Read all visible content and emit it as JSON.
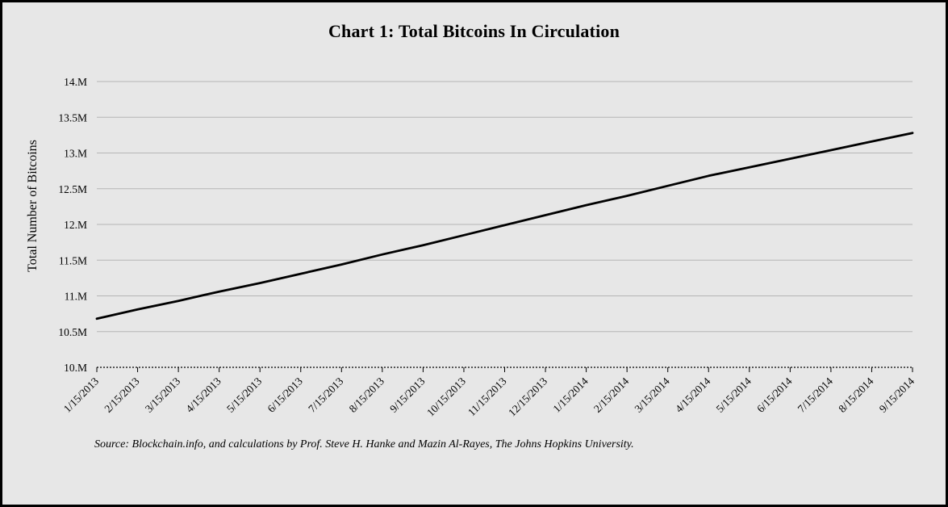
{
  "title": "Chart 1: Total Bitcoins In Circulation",
  "source_note": "Source: Blockchain.info, and calculations by Prof. Steve H. Hanke and Mazin Al-Rayes, The Johns Hopkins University.",
  "colors": {
    "background": "#e7e7e7",
    "border": "#000000",
    "line": "#000000",
    "gridline": "#b5b5b5",
    "text": "#000000"
  },
  "chart_data": {
    "type": "line",
    "title": "Chart 1: Total Bitcoins In Circulation",
    "xlabel": "",
    "ylabel": "Total Number of Bitcoins",
    "categories": [
      "1/15/2013",
      "2/15/2013",
      "3/15/2013",
      "4/15/2013",
      "5/15/2013",
      "6/15/2013",
      "7/15/2013",
      "8/15/2013",
      "9/15/2013",
      "10/15/2013",
      "11/15/2013",
      "12/15/2013",
      "1/15/2014",
      "2/15/2014",
      "3/15/2014",
      "4/15/2014",
      "5/15/2014",
      "6/15/2014",
      "7/15/2014",
      "8/15/2014",
      "9/15/2014"
    ],
    "values": [
      10.68,
      10.81,
      10.93,
      11.06,
      11.18,
      11.31,
      11.44,
      11.58,
      11.71,
      11.85,
      11.99,
      12.13,
      12.27,
      12.4,
      12.54,
      12.68,
      12.8,
      12.92,
      13.04,
      13.16,
      13.28
    ],
    "values_unit": "millions of bitcoins",
    "y_ticks": [
      {
        "label": "10.M",
        "value": 10.0
      },
      {
        "label": "10.5M",
        "value": 10.5
      },
      {
        "label": "11.M",
        "value": 11.0
      },
      {
        "label": "11.5M",
        "value": 11.5
      },
      {
        "label": "12.M",
        "value": 12.0
      },
      {
        "label": "12.5M",
        "value": 12.5
      },
      {
        "label": "13.M",
        "value": 13.0
      },
      {
        "label": "13.5M",
        "value": 13.5
      },
      {
        "label": "14.M",
        "value": 14.0
      }
    ],
    "ylim": [
      10,
      14
    ],
    "grid": true,
    "legend": false,
    "x_axis_style": "dashed",
    "x_label_rotation_deg": 45
  }
}
